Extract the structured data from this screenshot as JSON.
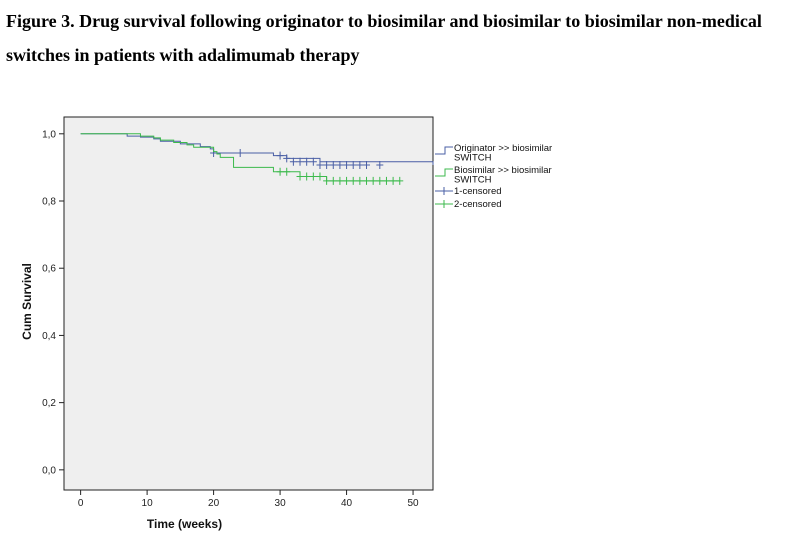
{
  "figure": {
    "caption": "Figure 3. Drug survival following originator to biosimilar and biosimilar to biosimilar non-medical switches in patients with adalimumab therapy"
  },
  "chart_data": {
    "type": "line",
    "title": "",
    "xlabel": "Time (weeks)",
    "ylabel": "Cum Survival",
    "xlim": [
      -2.5,
      53
    ],
    "ylim": [
      -0.06,
      1.05
    ],
    "x_ticks": [
      0,
      10,
      20,
      30,
      40,
      50
    ],
    "x_tick_labels": [
      "0",
      "10",
      "20",
      "30",
      "40",
      "50"
    ],
    "y_ticks": [
      0.0,
      0.2,
      0.4,
      0.6,
      0.8,
      1.0
    ],
    "y_tick_labels": [
      "0,0",
      "0,2",
      "0,4",
      "0,6",
      "0,8",
      "1,0"
    ],
    "grid": false,
    "legend_position": "right",
    "legend": [
      {
        "label_lines": [
          "Originator >> biosimilar",
          "SWITCH"
        ],
        "color": "#4a5fa5",
        "marker": "step"
      },
      {
        "label_lines": [
          "Biosimilar >> biosimilar",
          "SWITCH"
        ],
        "color": "#3cba4c",
        "marker": "step"
      },
      {
        "label_lines": [
          "1-censored"
        ],
        "color": "#4a5fa5",
        "marker": "plus"
      },
      {
        "label_lines": [
          "2-censored"
        ],
        "color": "#3cba4c",
        "marker": "plus"
      }
    ],
    "series": [
      {
        "name": "Originator >> biosimilar SWITCH",
        "color": "#4a5fa5",
        "step_x": [
          0,
          4,
          7,
          9,
          11,
          12,
          15,
          18,
          19.5,
          20,
          29,
          31,
          36,
          53
        ],
        "step_y": [
          1.0,
          1.0,
          0.993,
          0.99,
          0.985,
          0.978,
          0.97,
          0.962,
          0.955,
          0.943,
          0.935,
          0.927,
          0.917,
          0.907
        ],
        "censored_x": [
          20,
          24,
          30,
          31,
          32,
          33,
          34,
          35,
          36,
          37,
          38,
          39,
          40,
          41,
          42,
          43,
          45
        ],
        "censored_y": [
          0.943,
          0.943,
          0.935,
          0.927,
          0.917,
          0.917,
          0.917,
          0.917,
          0.907,
          0.907,
          0.907,
          0.907,
          0.907,
          0.907,
          0.907,
          0.907,
          0.907
        ]
      },
      {
        "name": "Biosimilar >> biosimilar SWITCH",
        "color": "#3cba4c",
        "step_x": [
          0,
          6,
          9,
          11,
          12,
          14,
          16,
          17,
          20,
          20.5,
          21,
          23,
          29,
          33,
          35,
          37,
          48
        ],
        "step_y": [
          1.0,
          1.0,
          0.993,
          0.988,
          0.981,
          0.974,
          0.967,
          0.96,
          0.947,
          0.94,
          0.93,
          0.9,
          0.887,
          0.873,
          0.873,
          0.86,
          0.86
        ],
        "censored_x": [
          30,
          31,
          33,
          34,
          35,
          36,
          37,
          38,
          39,
          40,
          41,
          42,
          43,
          44,
          45,
          46,
          47,
          48
        ],
        "censored_y": [
          0.887,
          0.887,
          0.873,
          0.873,
          0.873,
          0.873,
          0.86,
          0.86,
          0.86,
          0.86,
          0.86,
          0.86,
          0.86,
          0.86,
          0.86,
          0.86,
          0.86,
          0.86
        ]
      }
    ]
  }
}
